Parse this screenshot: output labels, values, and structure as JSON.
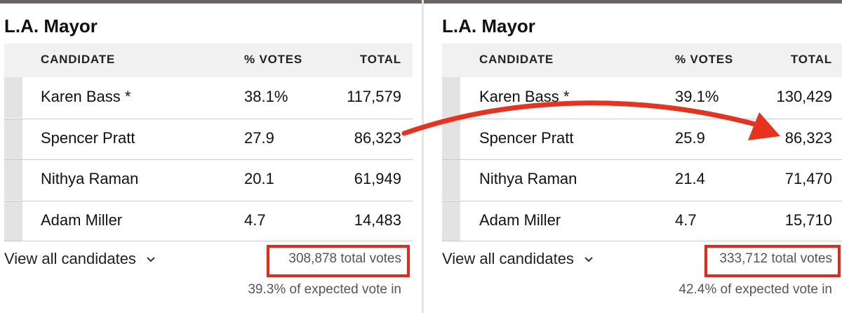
{
  "panels": [
    {
      "title": "L.A. Mayor",
      "headers": [
        "CANDIDATE",
        "% VOTES",
        "TOTAL"
      ],
      "rows": [
        [
          "Karen Bass *",
          "38.1%",
          "117,579"
        ],
        [
          "Spencer Pratt",
          "27.9",
          "86,323"
        ],
        [
          "Nithya Raman",
          "20.1",
          "61,949"
        ],
        [
          "Adam Miller",
          "4.7",
          "14,483"
        ]
      ],
      "view_all": "View all candidates",
      "total_votes": "308,878 total votes",
      "expected": "39.3% of expected vote in"
    },
    {
      "title": "L.A. Mayor",
      "headers": [
        "CANDIDATE",
        "% VOTES",
        "TOTAL"
      ],
      "rows": [
        [
          "Karen Bass *",
          "39.1%",
          "130,429"
        ],
        [
          "Spencer Pratt",
          "25.9",
          "86,323"
        ],
        [
          "Nithya Raman",
          "21.4",
          "71,470"
        ],
        [
          "Adam Miller",
          "4.7",
          "15,710"
        ]
      ],
      "view_all": "View all candidates",
      "total_votes": "333,712 total votes",
      "expected": "42.4% of expected vote in"
    }
  ]
}
